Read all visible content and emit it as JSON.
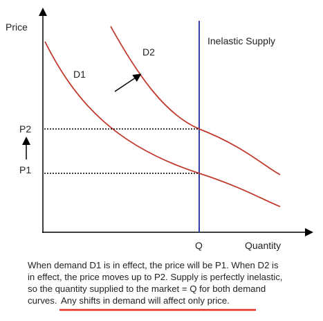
{
  "axes": {
    "y_label": "Price",
    "x_label": "Quantity"
  },
  "supply": {
    "label": "Inelastic Supply"
  },
  "curves": [
    {
      "label": "D1"
    },
    {
      "label": "D2"
    }
  ],
  "prices": [
    {
      "label": "P1"
    },
    {
      "label": "P2"
    }
  ],
  "quantity": {
    "label": "Q"
  },
  "caption": {
    "lines": [
      "When demand D1 is in effect, the price will be P1.  When D2 is",
      "in effect, the price moves up to P2. Supply is perfectly inelastic,",
      "so the quantity supplied to the market = Q for both demand",
      "curves."
    ],
    "highlight": "Any shifts in demand will affect only price."
  }
}
